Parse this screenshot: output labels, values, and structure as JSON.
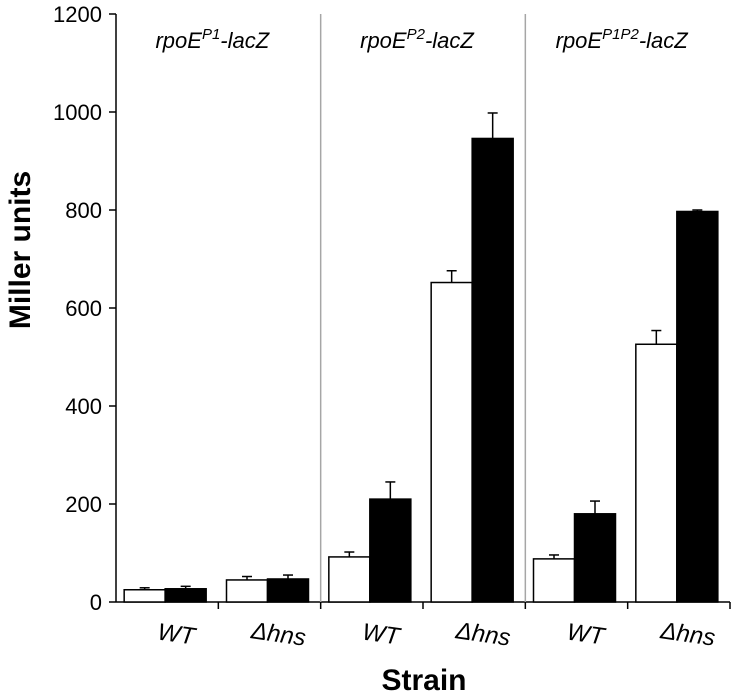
{
  "chart_data": {
    "type": "bar",
    "ylabel": "Miller units",
    "xlabel": "Strain",
    "ylim": [
      0,
      1200
    ],
    "yticks": [
      0,
      200,
      400,
      600,
      800,
      1000,
      1200
    ],
    "legend": "none",
    "grid": false,
    "series_colors": [
      "#ffffff",
      "#000000"
    ],
    "panels": [
      {
        "label_main": "rpoE",
        "label_sup": "P1",
        "label_suffix": "-lacZ",
        "groups": [
          {
            "category": "WT",
            "values": [
              25,
              27
            ],
            "errors": [
              4,
              5
            ]
          },
          {
            "category": "Δhns",
            "values": [
              45,
              47
            ],
            "errors": [
              7,
              8
            ]
          }
        ]
      },
      {
        "label_main": "rpoE",
        "label_sup": "P2",
        "label_suffix": "-lacZ",
        "groups": [
          {
            "category": "WT",
            "values": [
              92,
              210
            ],
            "errors": [
              10,
              35
            ]
          },
          {
            "category": "Δhns",
            "values": [
              652,
              946
            ],
            "errors": [
              24,
              52
            ]
          }
        ]
      },
      {
        "label_main": "rpoE",
        "label_sup": "P1P2",
        "label_suffix": "-lacZ",
        "groups": [
          {
            "category": "WT",
            "values": [
              88,
              180
            ],
            "errors": [
              8,
              26
            ]
          },
          {
            "category": "Δhns",
            "values": [
              526,
              797
            ],
            "errors": [
              28,
              3
            ]
          }
        ]
      }
    ]
  }
}
